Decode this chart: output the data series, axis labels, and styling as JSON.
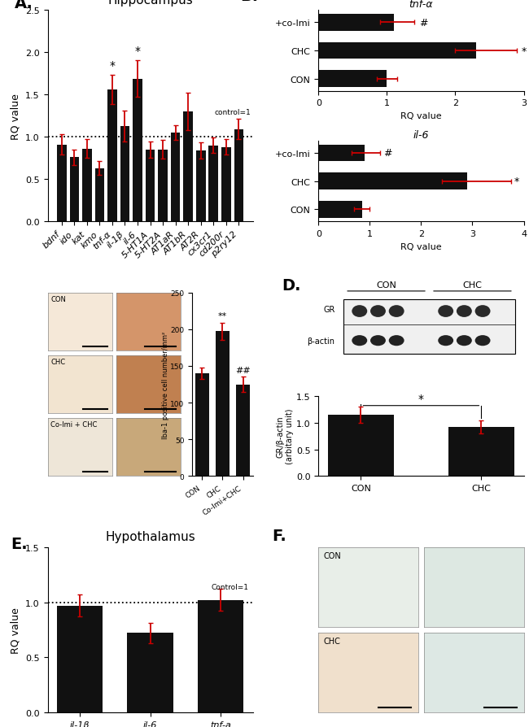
{
  "panel_A": {
    "title": "Hippocampus",
    "categories": [
      "bdnf",
      "ido",
      "kat",
      "kmo",
      "tnf-α",
      "il-1β",
      "il-6",
      "5-HT1A",
      "5-HT2A",
      "AT1aR",
      "AT1bR",
      "AT2R",
      "cx3cr1",
      "cd200r",
      "p2ry12"
    ],
    "values": [
      0.91,
      0.76,
      0.86,
      0.63,
      1.56,
      1.13,
      1.69,
      0.85,
      0.85,
      1.05,
      1.3,
      0.84,
      0.9,
      0.88,
      1.09
    ],
    "errors": [
      0.12,
      0.09,
      0.11,
      0.08,
      0.17,
      0.18,
      0.22,
      0.1,
      0.11,
      0.09,
      0.22,
      0.1,
      0.09,
      0.09,
      0.12
    ],
    "sig_idx": [
      4,
      6
    ],
    "ylabel": "RQ value",
    "ylim": [
      0,
      2.5
    ],
    "yticks": [
      0.0,
      0.5,
      1.0,
      1.5,
      2.0,
      2.5
    ],
    "control_line": 1.0,
    "bar_color": "#111111",
    "error_color": "#cc0000"
  },
  "panel_B_tnfa": {
    "title": "tnf-α",
    "categories": [
      "CON",
      "CHC",
      "+co-Imi"
    ],
    "values": [
      1.0,
      2.3,
      1.1
    ],
    "errors_low": [
      0.15,
      0.3,
      0.2
    ],
    "errors_high": [
      0.15,
      0.6,
      0.3
    ],
    "sig": [
      "",
      "*",
      "#"
    ],
    "xlabel": "RQ value",
    "xlim": [
      0,
      3
    ],
    "xticks": [
      0,
      1,
      2,
      3
    ],
    "bar_color": "#111111",
    "error_color": "#cc0000"
  },
  "panel_B_il6": {
    "title": "il-6",
    "categories": [
      "CON",
      "CHC",
      "+co-Imi"
    ],
    "values": [
      0.85,
      2.9,
      0.9
    ],
    "errors_low": [
      0.15,
      0.5,
      0.25
    ],
    "errors_high": [
      0.15,
      0.85,
      0.3
    ],
    "sig": [
      "",
      "*",
      "#"
    ],
    "xlabel": "RQ value",
    "xlim": [
      0,
      4
    ],
    "xticks": [
      0,
      1,
      2,
      3,
      4
    ],
    "bar_color": "#111111",
    "error_color": "#cc0000"
  },
  "panel_C_bar": {
    "categories": [
      "CON",
      "CHC",
      "Co-Imi+CHC"
    ],
    "values": [
      140,
      197,
      125
    ],
    "errors": [
      8,
      12,
      10
    ],
    "sig": [
      "",
      "**",
      "##"
    ],
    "ylabel": "Iba-1 positive cell number/mm²",
    "ylim": [
      0,
      250
    ],
    "yticks": [
      0,
      50,
      100,
      150,
      200,
      250
    ],
    "bar_color": "#111111",
    "error_color": "#cc0000"
  },
  "panel_D_bar": {
    "categories": [
      "CON",
      "CHC"
    ],
    "values": [
      1.15,
      0.92
    ],
    "errors": [
      0.15,
      0.12
    ],
    "ylabel": "GR/β-actin\n(arbitary unit)",
    "ylim": [
      0,
      1.5
    ],
    "yticks": [
      0.0,
      0.5,
      1.0,
      1.5
    ],
    "bar_color": "#111111",
    "error_color": "#cc0000"
  },
  "panel_E": {
    "title": "Hypothalamus",
    "categories": [
      "il-1β",
      "il-6",
      "tnf-a"
    ],
    "values": [
      0.97,
      0.72,
      1.02
    ],
    "errors": [
      0.1,
      0.09,
      0.1
    ],
    "ylabel": "RQ value",
    "ylim": [
      0,
      1.5
    ],
    "yticks": [
      0.0,
      0.5,
      1.0,
      1.5
    ],
    "control_line": 1.0,
    "bar_color": "#111111",
    "error_color": "#cc0000"
  },
  "bg_color": "#ffffff",
  "label_fontsize": 14,
  "tick_fontsize": 8,
  "title_fontsize": 11
}
